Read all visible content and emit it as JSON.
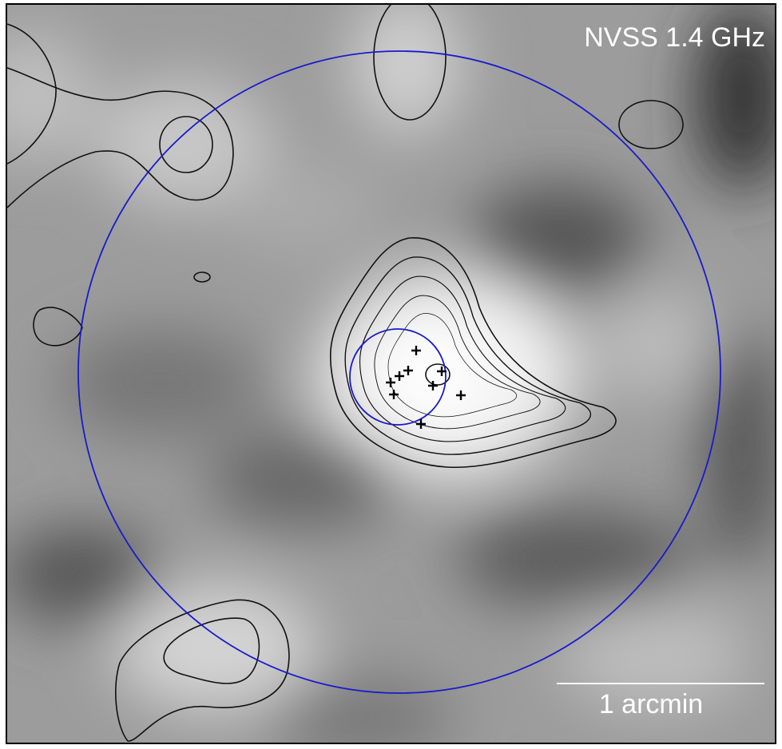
{
  "image": {
    "label": "NVSS 1.4 GHz",
    "scale_bar": "1 arcmin"
  }
}
